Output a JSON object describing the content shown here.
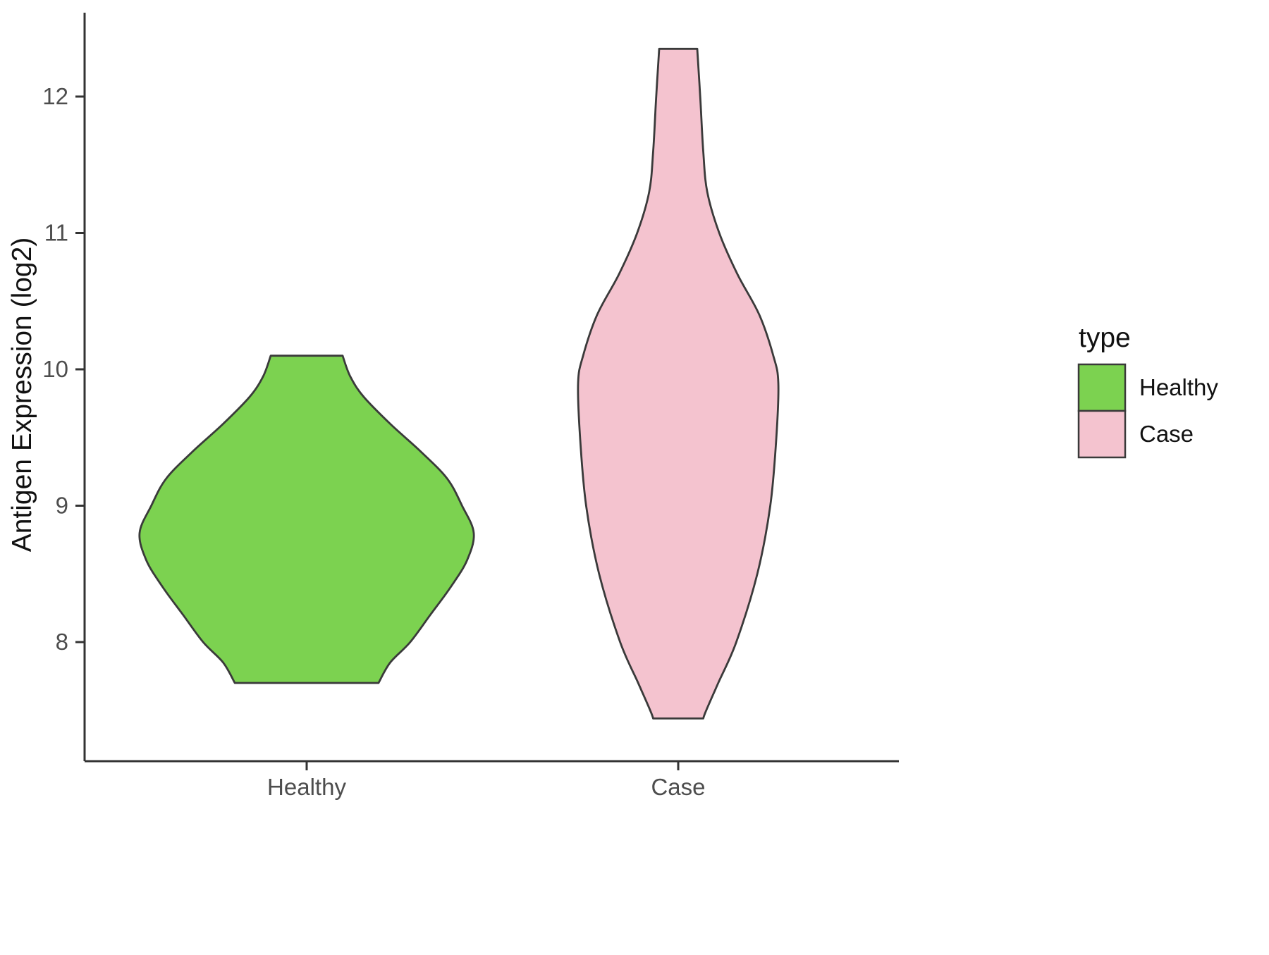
{
  "chart_data": {
    "type": "violin",
    "title": "",
    "xlabel": "",
    "ylabel": "Antigen Expression (log2)",
    "categories": [
      "Healthy",
      "Case"
    ],
    "y_ticks": [
      8,
      9,
      10,
      11,
      12
    ],
    "ylim": [
      7.1,
      12.6
    ],
    "grid": "off",
    "legend": {
      "title": "type",
      "position": "right"
    },
    "stroke_color": "#3a3a3a",
    "series": [
      {
        "name": "Healthy",
        "color": "#7CD250",
        "value_min": 7.7,
        "value_max": 10.1,
        "profile": [
          [
            10.1,
            0.215
          ],
          [
            9.95,
            0.26
          ],
          [
            9.8,
            0.34
          ],
          [
            9.6,
            0.5
          ],
          [
            9.4,
            0.68
          ],
          [
            9.2,
            0.84
          ],
          [
            9.0,
            0.93
          ],
          [
            8.8,
            1.0
          ],
          [
            8.6,
            0.96
          ],
          [
            8.4,
            0.86
          ],
          [
            8.2,
            0.74
          ],
          [
            8.0,
            0.62
          ],
          [
            7.85,
            0.5
          ],
          [
            7.7,
            0.43
          ]
        ]
      },
      {
        "name": "Case",
        "color": "#F4C3CF",
        "value_min": 7.44,
        "value_max": 12.35,
        "profile": [
          [
            12.35,
            0.19
          ],
          [
            12.0,
            0.22
          ],
          [
            11.6,
            0.25
          ],
          [
            11.3,
            0.29
          ],
          [
            11.0,
            0.41
          ],
          [
            10.7,
            0.59
          ],
          [
            10.4,
            0.81
          ],
          [
            10.1,
            0.95
          ],
          [
            9.9,
            1.0
          ],
          [
            9.5,
            0.98
          ],
          [
            9.0,
            0.92
          ],
          [
            8.5,
            0.79
          ],
          [
            8.0,
            0.58
          ],
          [
            7.7,
            0.4
          ],
          [
            7.5,
            0.28
          ],
          [
            7.44,
            0.25
          ]
        ]
      }
    ]
  }
}
